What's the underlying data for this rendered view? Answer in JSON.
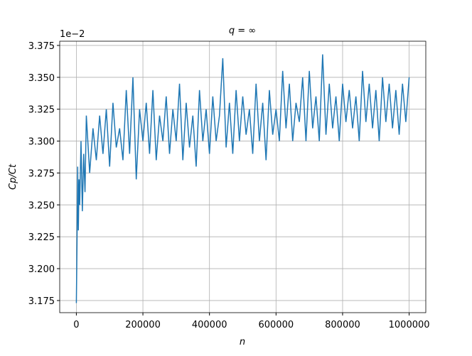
{
  "chart_data": {
    "type": "line",
    "title": "q = ∞",
    "x_label": "n",
    "y_label": "Cp/Ct",
    "y_offset_label": "1e−2",
    "x": [
      0,
      2000,
      4000,
      6000,
      8000,
      10000,
      14000,
      18000,
      22000,
      26000,
      30000,
      40000,
      50000,
      60000,
      70000,
      80000,
      90000,
      100000,
      110000,
      120000,
      130000,
      140000,
      150000,
      160000,
      170000,
      180000,
      190000,
      200000,
      210000,
      220000,
      230000,
      240000,
      250000,
      260000,
      270000,
      280000,
      290000,
      300000,
      310000,
      320000,
      330000,
      340000,
      350000,
      360000,
      370000,
      380000,
      390000,
      400000,
      410000,
      420000,
      430000,
      440000,
      450000,
      460000,
      470000,
      480000,
      490000,
      500000,
      510000,
      520000,
      530000,
      540000,
      550000,
      560000,
      570000,
      580000,
      590000,
      600000,
      610000,
      620000,
      630000,
      640000,
      650000,
      660000,
      670000,
      680000,
      690000,
      700000,
      710000,
      720000,
      730000,
      740000,
      750000,
      760000,
      770000,
      780000,
      790000,
      800000,
      810000,
      820000,
      830000,
      840000,
      850000,
      860000,
      870000,
      880000,
      890000,
      900000,
      910000,
      920000,
      930000,
      940000,
      950000,
      960000,
      970000,
      980000,
      990000,
      1000000
    ],
    "series": [
      {
        "name": "Cp/Ct",
        "color": "#1f77b4",
        "values": [
          3.173,
          3.22,
          3.28,
          3.23,
          3.27,
          3.25,
          3.3,
          3.245,
          3.29,
          3.26,
          3.32,
          3.275,
          3.31,
          3.285,
          3.32,
          3.29,
          3.325,
          3.28,
          3.33,
          3.295,
          3.31,
          3.285,
          3.34,
          3.29,
          3.35,
          3.27,
          3.325,
          3.3,
          3.33,
          3.29,
          3.34,
          3.285,
          3.32,
          3.3,
          3.335,
          3.29,
          3.325,
          3.3,
          3.345,
          3.285,
          3.33,
          3.295,
          3.32,
          3.28,
          3.34,
          3.3,
          3.325,
          3.29,
          3.335,
          3.3,
          3.32,
          3.365,
          3.295,
          3.33,
          3.29,
          3.34,
          3.3,
          3.335,
          3.305,
          3.325,
          3.29,
          3.345,
          3.3,
          3.33,
          3.285,
          3.34,
          3.305,
          3.325,
          3.3,
          3.355,
          3.31,
          3.345,
          3.3,
          3.33,
          3.315,
          3.35,
          3.3,
          3.355,
          3.31,
          3.335,
          3.3,
          3.368,
          3.305,
          3.345,
          3.31,
          3.335,
          3.3,
          3.345,
          3.315,
          3.34,
          3.31,
          3.335,
          3.3,
          3.355,
          3.315,
          3.345,
          3.31,
          3.34,
          3.3,
          3.35,
          3.315,
          3.345,
          3.31,
          3.34,
          3.305,
          3.345,
          3.315,
          3.35
        ]
      }
    ],
    "xlim": [
      -50000,
      1050000
    ],
    "ylim": [
      3.1655,
      3.3783
    ],
    "xticks": [
      0,
      200000,
      400000,
      600000,
      800000,
      1000000
    ],
    "yticks": [
      3.175,
      {
        "value": 3.2,
        "label": "3.200"
      },
      3.225,
      {
        "value": 3.25,
        "label": "3.250"
      },
      3.275,
      {
        "value": 3.3,
        "label": "3.300"
      },
      3.325,
      {
        "value": 3.35,
        "label": "3.350"
      },
      3.375
    ],
    "grid": true
  }
}
